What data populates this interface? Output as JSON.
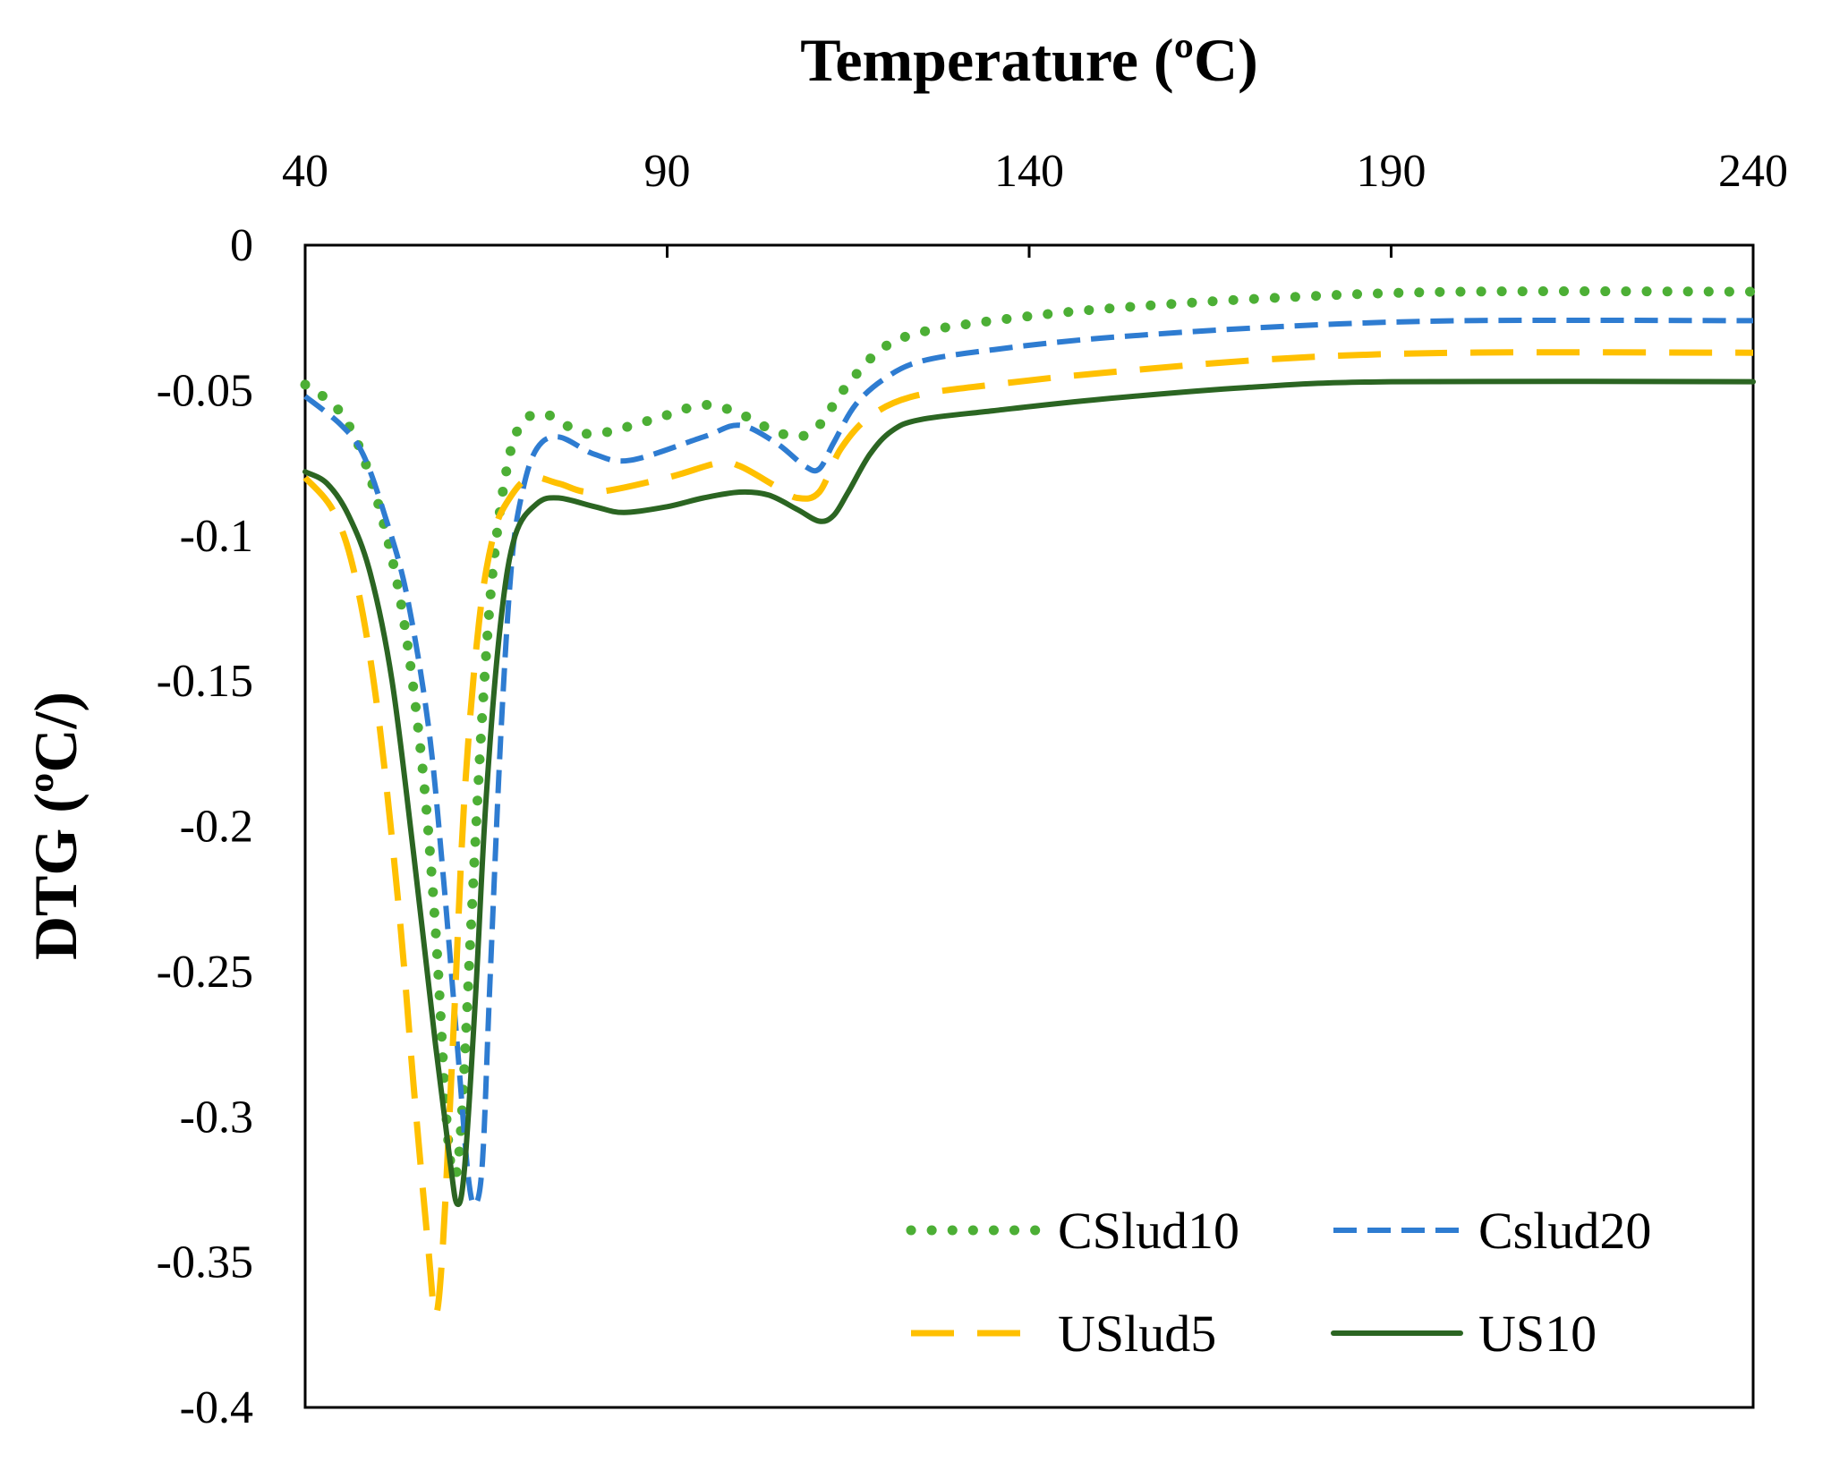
{
  "chart_data": {
    "type": "line",
    "xlabel": "Temperature (ºC)",
    "ylabel": "DTG (ºC/)",
    "xlim": [
      40,
      240
    ],
    "ylim": [
      -0.4,
      0
    ],
    "x_ticks": [
      "40",
      "90",
      "140",
      "190",
      "240"
    ],
    "x_tick_values": [
      40,
      90,
      140,
      190,
      240
    ],
    "y_ticks": [
      "0",
      "-0.05",
      "-0.1",
      "-0.15",
      "-0.2",
      "-0.25",
      "-0.3",
      "-0.35",
      "-0.4"
    ],
    "y_tick_values": [
      0,
      -0.05,
      -0.1,
      -0.15,
      -0.2,
      -0.25,
      -0.3,
      -0.35,
      -0.4
    ],
    "x_axis_position": "top",
    "legend_position": "bottom-right",
    "series": [
      {
        "name": "CSlud10",
        "color": "#4caf35",
        "style": "dotted",
        "points": [
          [
            40,
            -0.048
          ],
          [
            45,
            -0.058
          ],
          [
            49,
            -0.08
          ],
          [
            53,
            -0.12
          ],
          [
            56,
            -0.175
          ],
          [
            58,
            -0.235
          ],
          [
            59.5,
            -0.3
          ],
          [
            60.5,
            -0.32
          ],
          [
            61.5,
            -0.305
          ],
          [
            63,
            -0.23
          ],
          [
            64.5,
            -0.16
          ],
          [
            66,
            -0.11
          ],
          [
            68,
            -0.075
          ],
          [
            70,
            -0.061
          ],
          [
            73,
            -0.058
          ],
          [
            76,
            -0.062
          ],
          [
            80,
            -0.065
          ],
          [
            88,
            -0.06
          ],
          [
            95,
            -0.055
          ],
          [
            100,
            -0.058
          ],
          [
            104,
            -0.063
          ],
          [
            108,
            -0.066
          ],
          [
            111,
            -0.062
          ],
          [
            114,
            -0.051
          ],
          [
            117,
            -0.042
          ],
          [
            120,
            -0.035
          ],
          [
            125,
            -0.03
          ],
          [
            135,
            -0.026
          ],
          [
            150,
            -0.022
          ],
          [
            175,
            -0.018
          ],
          [
            200,
            -0.016
          ],
          [
            240,
            -0.016
          ]
        ]
      },
      {
        "name": "Cslud20",
        "color": "#2e7cd1",
        "style": "dashed",
        "points": [
          [
            40,
            -0.052
          ],
          [
            45,
            -0.062
          ],
          [
            48,
            -0.072
          ],
          [
            51,
            -0.093
          ],
          [
            54,
            -0.12
          ],
          [
            57,
            -0.165
          ],
          [
            59,
            -0.215
          ],
          [
            61,
            -0.275
          ],
          [
            62.5,
            -0.32
          ],
          [
            63.5,
            -0.33
          ],
          [
            64.5,
            -0.315
          ],
          [
            65.5,
            -0.255
          ],
          [
            67,
            -0.17
          ],
          [
            68.5,
            -0.11
          ],
          [
            70,
            -0.085
          ],
          [
            72,
            -0.07
          ],
          [
            75,
            -0.066
          ],
          [
            80,
            -0.072
          ],
          [
            85,
            -0.074
          ],
          [
            95,
            -0.066
          ],
          [
            100,
            -0.062
          ],
          [
            105,
            -0.068
          ],
          [
            109,
            -0.076
          ],
          [
            111,
            -0.077
          ],
          [
            113,
            -0.068
          ],
          [
            116,
            -0.055
          ],
          [
            120,
            -0.046
          ],
          [
            125,
            -0.04
          ],
          [
            135,
            -0.036
          ],
          [
            150,
            -0.032
          ],
          [
            175,
            -0.028
          ],
          [
            200,
            -0.026
          ],
          [
            240,
            -0.026
          ]
        ]
      },
      {
        "name": "USlud5",
        "color": "#ffc000",
        "style": "long-dashed",
        "points": [
          [
            40,
            -0.08
          ],
          [
            44,
            -0.092
          ],
          [
            47,
            -0.115
          ],
          [
            50,
            -0.16
          ],
          [
            53,
            -0.23
          ],
          [
            55,
            -0.29
          ],
          [
            57,
            -0.345
          ],
          [
            58,
            -0.368
          ],
          [
            59,
            -0.345
          ],
          [
            60.5,
            -0.27
          ],
          [
            62,
            -0.19
          ],
          [
            64,
            -0.13
          ],
          [
            66,
            -0.1
          ],
          [
            68,
            -0.088
          ],
          [
            71,
            -0.08
          ],
          [
            75,
            -0.082
          ],
          [
            80,
            -0.085
          ],
          [
            90,
            -0.08
          ],
          [
            97,
            -0.075
          ],
          [
            100,
            -0.076
          ],
          [
            105,
            -0.083
          ],
          [
            108,
            -0.087
          ],
          [
            111,
            -0.085
          ],
          [
            114,
            -0.07
          ],
          [
            118,
            -0.059
          ],
          [
            124,
            -0.052
          ],
          [
            135,
            -0.048
          ],
          [
            150,
            -0.044
          ],
          [
            175,
            -0.039
          ],
          [
            200,
            -0.037
          ],
          [
            240,
            -0.037
          ]
        ]
      },
      {
        "name": "US10",
        "color": "#2b6522",
        "style": "solid",
        "points": [
          [
            40,
            -0.078
          ],
          [
            43,
            -0.082
          ],
          [
            46,
            -0.093
          ],
          [
            49,
            -0.113
          ],
          [
            52,
            -0.15
          ],
          [
            55,
            -0.21
          ],
          [
            58,
            -0.275
          ],
          [
            60,
            -0.315
          ],
          [
            61,
            -0.33
          ],
          [
            62,
            -0.318
          ],
          [
            63.5,
            -0.26
          ],
          [
            65,
            -0.19
          ],
          [
            67,
            -0.13
          ],
          [
            69,
            -0.1
          ],
          [
            72,
            -0.089
          ],
          [
            75,
            -0.087
          ],
          [
            80,
            -0.09
          ],
          [
            84,
            -0.092
          ],
          [
            90,
            -0.09
          ],
          [
            95,
            -0.087
          ],
          [
            100,
            -0.085
          ],
          [
            104,
            -0.086
          ],
          [
            108,
            -0.091
          ],
          [
            111,
            -0.095
          ],
          [
            113,
            -0.093
          ],
          [
            115,
            -0.085
          ],
          [
            118,
            -0.072
          ],
          [
            121,
            -0.064
          ],
          [
            125,
            -0.06
          ],
          [
            135,
            -0.057
          ],
          [
            150,
            -0.053
          ],
          [
            170,
            -0.049
          ],
          [
            190,
            -0.047
          ],
          [
            240,
            -0.047
          ]
        ]
      }
    ]
  }
}
